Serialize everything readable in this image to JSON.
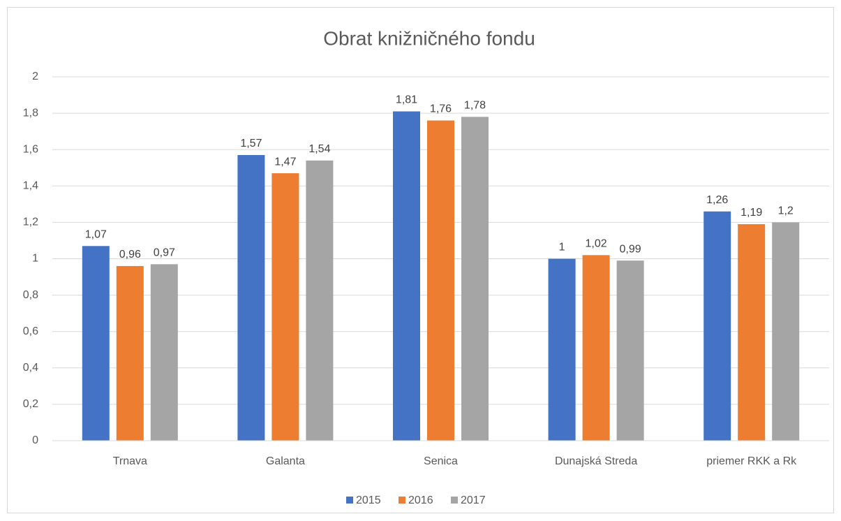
{
  "chart_data": {
    "type": "bar",
    "title": "Obrat knižničného fondu",
    "categories": [
      "Trnava",
      "Galanta",
      "Senica",
      "Dunajská Streda",
      "priemer RKK a Rk"
    ],
    "series": [
      {
        "name": "2015",
        "color": "#4472c4",
        "values": [
          1.07,
          1.57,
          1.81,
          1,
          1.26
        ],
        "value_labels": [
          "1,07",
          "1,57",
          "1,81",
          "1",
          "1,26"
        ]
      },
      {
        "name": "2016",
        "color": "#ed7d31",
        "values": [
          0.96,
          1.47,
          1.76,
          1.02,
          1.19
        ],
        "value_labels": [
          "0,96",
          "1,47",
          "1,76",
          "1,02",
          "1,19"
        ]
      },
      {
        "name": "2017",
        "color": "#a5a5a5",
        "values": [
          0.97,
          1.54,
          1.78,
          0.99,
          1.2
        ],
        "value_labels": [
          "0,97",
          "1,54",
          "1,78",
          "0,99",
          "1,2"
        ]
      }
    ],
    "ylim": [
      0,
      2
    ],
    "yticks": [
      0,
      {
        "value": 0.2,
        "label": "0,2"
      },
      {
        "value": 0.4,
        "label": "0,4"
      },
      {
        "value": 0.6,
        "label": "0,6"
      },
      {
        "value": 0.8,
        "label": "0,8"
      },
      1,
      {
        "value": 1.2,
        "label": "1,2"
      },
      {
        "value": 1.4,
        "label": "1,4"
      },
      {
        "value": 1.6,
        "label": "1,6"
      },
      {
        "value": 1.8,
        "label": "1,8"
      },
      2
    ],
    "grid": true,
    "legend": "bottom"
  }
}
